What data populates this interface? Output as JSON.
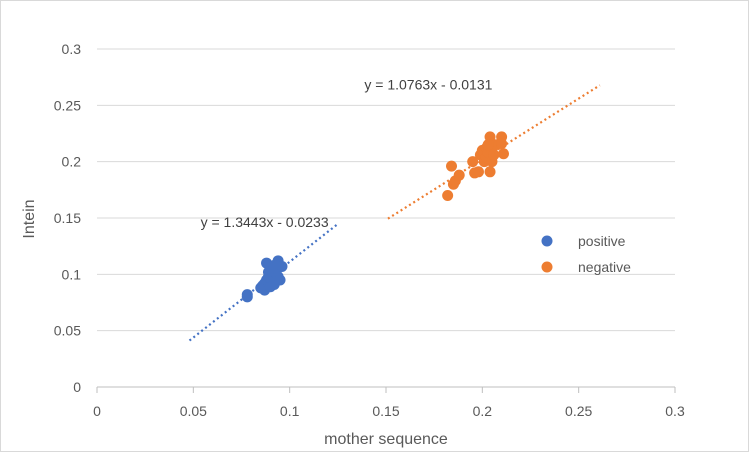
{
  "chart_data": {
    "type": "scatter",
    "xlabel": "mother sequence",
    "ylabel": "Intein",
    "xlim": [
      0,
      0.3
    ],
    "ylim": [
      0,
      0.3
    ],
    "x_ticks": [
      "0",
      "0.05",
      "0.1",
      "0.15",
      "0.2",
      "0.25",
      "0.3"
    ],
    "y_ticks": [
      "0",
      "0.05",
      "0.1",
      "0.15",
      "0.2",
      "0.25",
      "0.3"
    ],
    "x_tick_values": [
      0,
      0.05,
      0.1,
      0.15,
      0.2,
      0.25,
      0.3
    ],
    "y_tick_values": [
      0,
      0.05,
      0.1,
      0.15,
      0.2,
      0.25,
      0.3
    ],
    "grid": "horizontal",
    "legend_position": "right",
    "series": [
      {
        "name": "positive",
        "color": "#4472C4",
        "points": [
          [
            0.078,
            0.08
          ],
          [
            0.078,
            0.082
          ],
          [
            0.085,
            0.088
          ],
          [
            0.086,
            0.09
          ],
          [
            0.087,
            0.086
          ],
          [
            0.087,
            0.092
          ],
          [
            0.088,
            0.095
          ],
          [
            0.088,
            0.11
          ],
          [
            0.089,
            0.093
          ],
          [
            0.089,
            0.098
          ],
          [
            0.09,
            0.089
          ],
          [
            0.09,
            0.097
          ],
          [
            0.091,
            0.1
          ],
          [
            0.091,
            0.104
          ],
          [
            0.092,
            0.091
          ],
          [
            0.092,
            0.097
          ],
          [
            0.093,
            0.101
          ],
          [
            0.093,
            0.106
          ],
          [
            0.094,
            0.112
          ],
          [
            0.094,
            0.098
          ],
          [
            0.095,
            0.095
          ],
          [
            0.096,
            0.107
          ],
          [
            0.092,
            0.108
          ],
          [
            0.089,
            0.102
          ]
        ],
        "trendline": {
          "label": "y = 1.3443x - 0.0233",
          "x_range": [
            0.048,
            0.125
          ]
        }
      },
      {
        "name": "negative",
        "color": "#ED7D31",
        "points": [
          [
            0.182,
            0.17
          ],
          [
            0.184,
            0.196
          ],
          [
            0.185,
            0.18
          ],
          [
            0.186,
            0.183
          ],
          [
            0.188,
            0.188
          ],
          [
            0.195,
            0.2
          ],
          [
            0.196,
            0.19
          ],
          [
            0.198,
            0.191
          ],
          [
            0.199,
            0.206
          ],
          [
            0.2,
            0.21
          ],
          [
            0.201,
            0.2
          ],
          [
            0.202,
            0.212
          ],
          [
            0.202,
            0.204
          ],
          [
            0.203,
            0.208
          ],
          [
            0.204,
            0.222
          ],
          [
            0.204,
            0.191
          ],
          [
            0.205,
            0.21
          ],
          [
            0.205,
            0.2
          ],
          [
            0.206,
            0.206
          ],
          [
            0.207,
            0.215
          ],
          [
            0.21,
            0.222
          ],
          [
            0.21,
            0.216
          ],
          [
            0.211,
            0.207
          ],
          [
            0.203,
            0.215
          ]
        ],
        "trendline": {
          "label": "y = 1.0763x - 0.0131",
          "x_range": [
            0.151,
            0.261
          ]
        }
      }
    ]
  }
}
